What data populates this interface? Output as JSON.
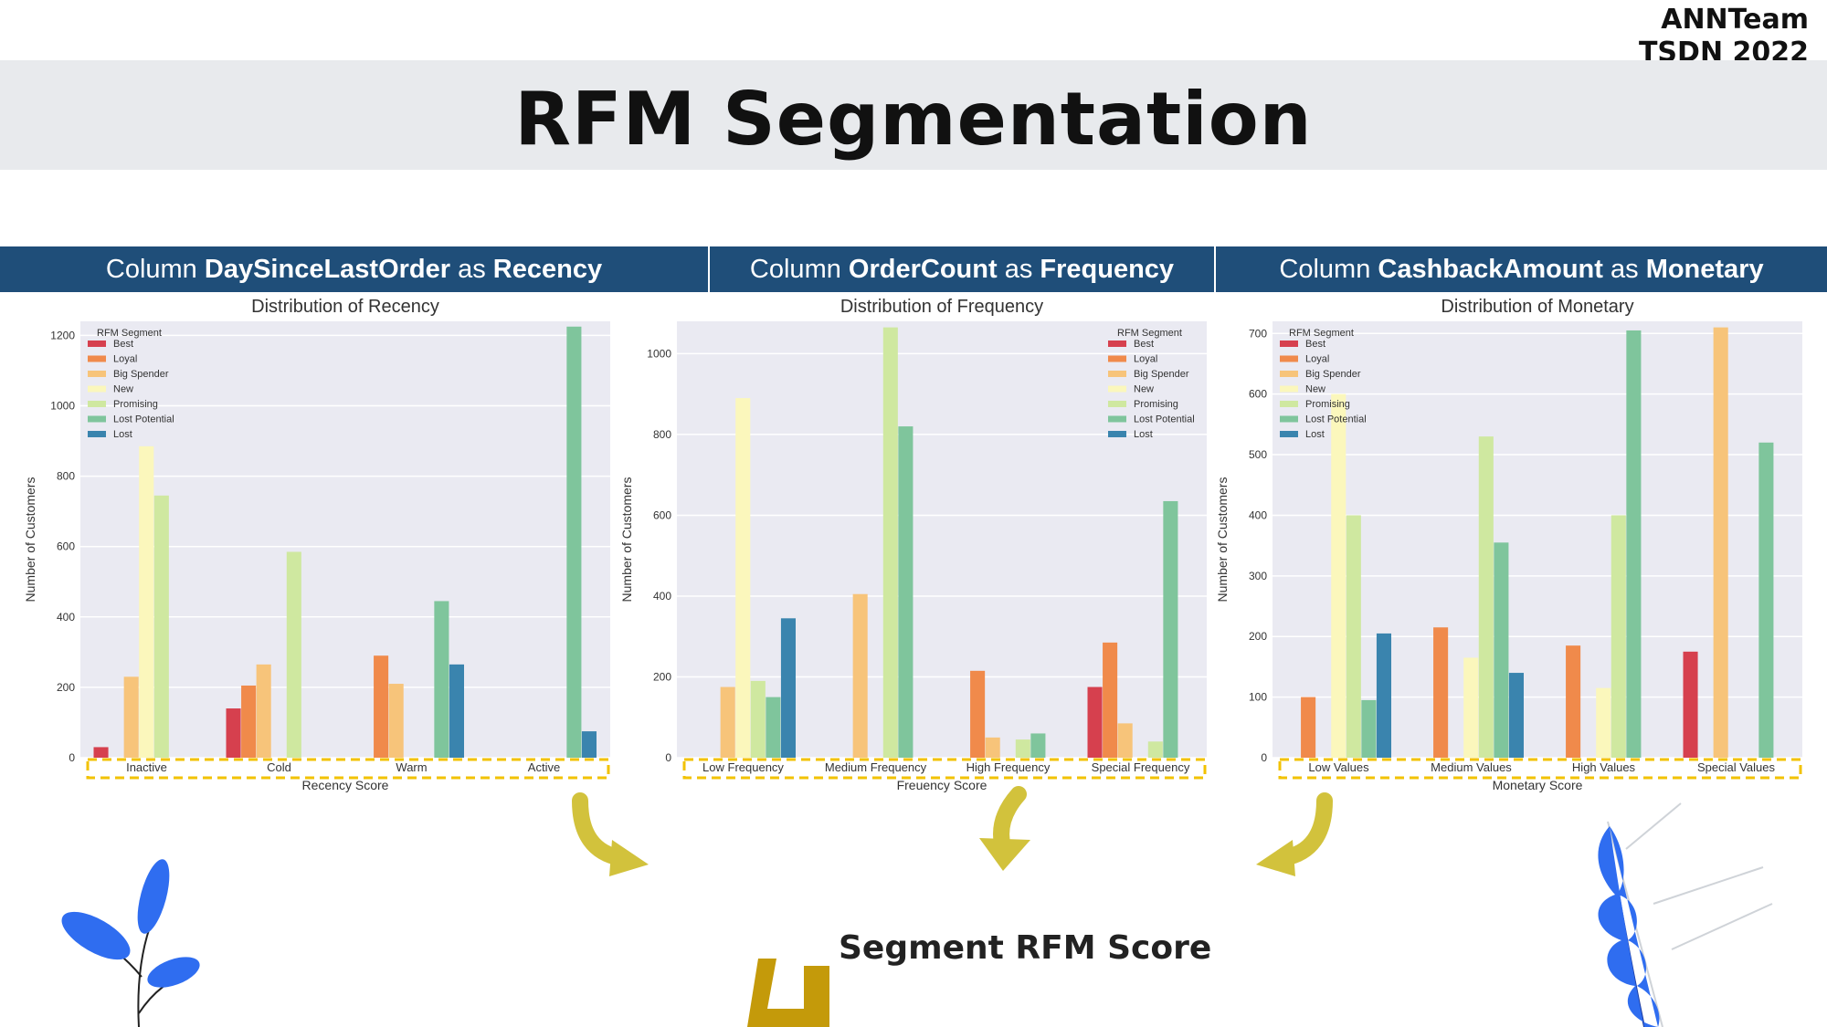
{
  "brand": {
    "line1": "ANNTeam",
    "line2": "TSDN 2022"
  },
  "title": "RFM Segmentation",
  "columns": [
    {
      "prefix": "Column ",
      "field": "DaySinceLastOrder",
      "mid": " as ",
      "role": "Recency"
    },
    {
      "prefix": "Column ",
      "field": "OrderCount",
      "mid": " as ",
      "role": "Frequency"
    },
    {
      "prefix": "Column ",
      "field": "CashbackAmount",
      "mid": " as ",
      "role": "Monetary"
    }
  ],
  "segment_title": "Segment RFM Score",
  "legend_title": "RFM Segment",
  "segment_colors": [
    "#d6404e",
    "#f08a4b",
    "#f7c47a",
    "#fbf7bc",
    "#cfe8a0",
    "#7fc59c",
    "#3a84ae"
  ],
  "dashed_highlight_color": "#f2c200",
  "arrow_color": "#d2c23c",
  "chart_data": [
    {
      "type": "bar",
      "title": "Distribution of Recency",
      "xlabel": "Recency Score",
      "ylabel": "Number of Customers",
      "ylim": [
        0,
        1240
      ],
      "yticks": [
        0,
        200,
        400,
        600,
        800,
        1000,
        1200
      ],
      "legend_position": "top-left",
      "categories": [
        "Inactive",
        "Cold",
        "Warm",
        "Active"
      ],
      "series": [
        {
          "name": "Best",
          "values": [
            30,
            140,
            0,
            0
          ]
        },
        {
          "name": "Loyal",
          "values": [
            0,
            205,
            290,
            0
          ]
        },
        {
          "name": "Big Spender",
          "values": [
            230,
            265,
            210,
            0
          ]
        },
        {
          "name": "New",
          "values": [
            885,
            0,
            0,
            0
          ]
        },
        {
          "name": "Promising",
          "values": [
            745,
            585,
            0,
            0
          ]
        },
        {
          "name": "Lost Potential",
          "values": [
            0,
            0,
            445,
            1225
          ]
        },
        {
          "name": "Lost",
          "values": [
            0,
            0,
            265,
            75
          ]
        }
      ]
    },
    {
      "type": "bar",
      "title": "Distribution of Frequency",
      "xlabel": "Freuency Score",
      "ylabel": "Number of Customers",
      "ylim": [
        0,
        1080
      ],
      "yticks": [
        0,
        200,
        400,
        600,
        800,
        1000
      ],
      "legend_position": "top-right",
      "categories": [
        "Low Frequency",
        "Medium Frequency",
        "High Frequency",
        "Special Frequency"
      ],
      "series": [
        {
          "name": "Best",
          "values": [
            0,
            0,
            0,
            175
          ]
        },
        {
          "name": "Loyal",
          "values": [
            0,
            0,
            215,
            285
          ]
        },
        {
          "name": "Big Spender",
          "values": [
            175,
            405,
            50,
            85
          ]
        },
        {
          "name": "New",
          "values": [
            890,
            0,
            0,
            0
          ]
        },
        {
          "name": "Promising",
          "values": [
            190,
            1065,
            45,
            40
          ]
        },
        {
          "name": "Lost Potential",
          "values": [
            150,
            820,
            60,
            635
          ]
        },
        {
          "name": "Lost",
          "values": [
            345,
            0,
            0,
            0
          ]
        }
      ]
    },
    {
      "type": "bar",
      "title": "Distribution of Monetary",
      "xlabel": "Monetary Score",
      "ylabel": "Number of Customers",
      "ylim": [
        0,
        720
      ],
      "yticks": [
        0,
        100,
        200,
        300,
        400,
        500,
        600,
        700
      ],
      "legend_position": "top-left",
      "categories": [
        "Low Values",
        "Medium Values",
        "High Values",
        "Special Values"
      ],
      "series": [
        {
          "name": "Best",
          "values": [
            0,
            0,
            0,
            175
          ]
        },
        {
          "name": "Loyal",
          "values": [
            100,
            215,
            185,
            0
          ]
        },
        {
          "name": "Big Spender",
          "values": [
            0,
            0,
            0,
            710
          ]
        },
        {
          "name": "New",
          "values": [
            600,
            165,
            115,
            0
          ]
        },
        {
          "name": "Promising",
          "values": [
            400,
            530,
            400,
            0
          ]
        },
        {
          "name": "Lost Potential",
          "values": [
            95,
            355,
            705,
            520
          ]
        },
        {
          "name": "Lost",
          "values": [
            205,
            140,
            0,
            0
          ]
        }
      ]
    }
  ]
}
